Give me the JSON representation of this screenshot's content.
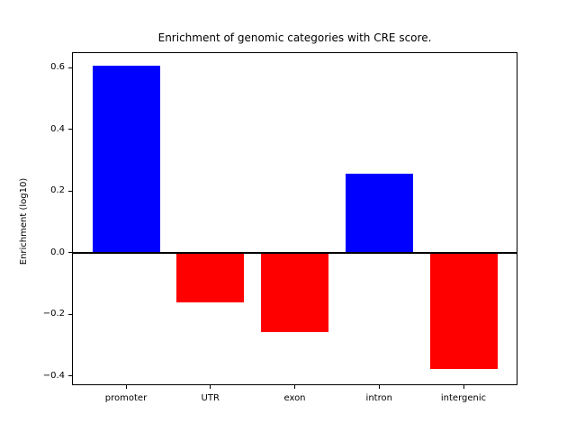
{
  "chart_data": {
    "type": "bar",
    "title": "Enrichment of genomic categories with CRE score.",
    "xlabel": "",
    "ylabel": "Enrichment (log10)",
    "categories": [
      "promoter",
      "UTR",
      "exon",
      "intron",
      "intergenic"
    ],
    "values": [
      0.605,
      -0.162,
      -0.258,
      0.256,
      -0.378
    ],
    "bar_colors": [
      "#0000ff",
      "#ff0000",
      "#ff0000",
      "#0000ff",
      "#ff0000"
    ],
    "positive_color": "#0000ff",
    "negative_color": "#ff0000",
    "axis_color": "#000000",
    "background_color": "#ffffff",
    "ylim": [
      -0.43,
      0.65
    ],
    "xlim": [
      -0.64,
      4.64
    ],
    "bar_width_fraction": 0.8,
    "yticks": [
      0.6,
      0.4,
      0.2,
      0.0,
      -0.2,
      -0.4
    ],
    "ytick_labels": [
      "0.6",
      "0.4",
      "0.2",
      "0.0",
      "−0.2",
      "−0.4"
    ],
    "zero_line": true,
    "grid": false,
    "legend": "none"
  }
}
